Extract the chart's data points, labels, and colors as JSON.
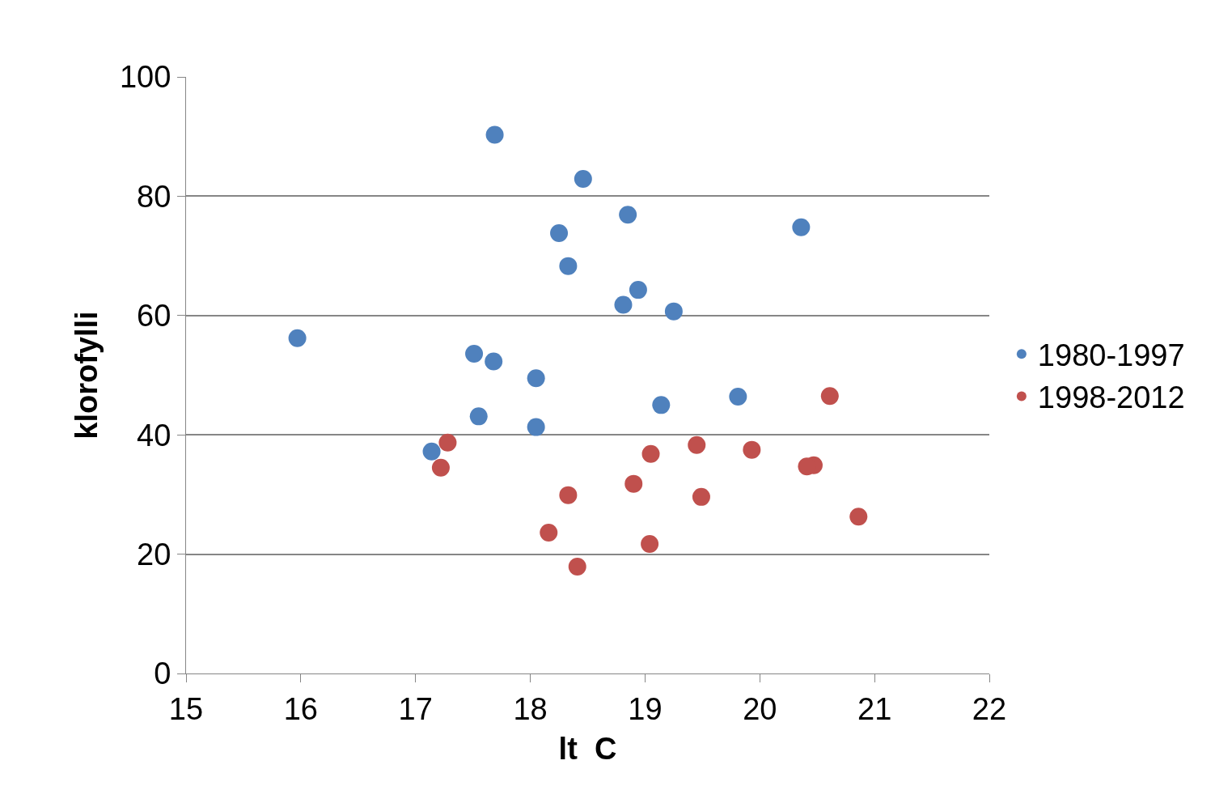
{
  "chart_data": {
    "type": "scatter",
    "xlabel": "lt  C",
    "ylabel": "klorofylli",
    "xlim": [
      15,
      22
    ],
    "xticks": [
      15,
      16,
      17,
      18,
      19,
      20,
      21,
      22
    ],
    "ylim": [
      0,
      100
    ],
    "yticks": [
      0,
      20,
      40,
      60,
      80,
      100
    ],
    "grid": "y",
    "legend": "right",
    "marker": "circle",
    "series": [
      {
        "name": "1980-1997",
        "color": "#4f81bd",
        "x": [
          15.97,
          17.69,
          18.46,
          18.85,
          18.25,
          20.36,
          18.33,
          18.94,
          18.81,
          19.25,
          17.51,
          17.68,
          18.05,
          19.81,
          19.14,
          17.55,
          18.05,
          17.14
        ],
        "values": [
          56.2,
          90.3,
          82.9,
          76.9,
          73.8,
          74.8,
          68.3,
          64.3,
          61.8,
          60.7,
          53.6,
          52.3,
          49.5,
          46.4,
          45.0,
          43.1,
          41.3,
          37.2
        ]
      },
      {
        "name": "1998-2012",
        "color": "#c0504d",
        "x": [
          17.28,
          17.22,
          20.61,
          19.45,
          19.93,
          19.05,
          20.47,
          20.41,
          18.9,
          18.33,
          19.49,
          20.86,
          18.16,
          19.04,
          18.41
        ],
        "values": [
          38.7,
          34.5,
          46.5,
          38.3,
          37.5,
          36.8,
          34.9,
          34.7,
          31.8,
          29.9,
          29.6,
          26.3,
          23.6,
          21.7,
          17.9
        ]
      }
    ]
  }
}
